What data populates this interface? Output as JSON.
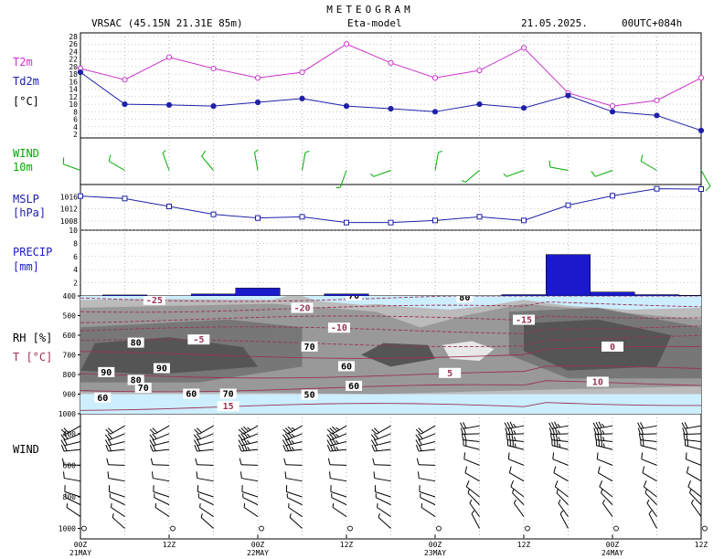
{
  "header": {
    "title": "METEOGRAM",
    "station": "VRSAC (45.15N 21.31E  85m)",
    "model": "Eta-model",
    "date": "21.05.2025.",
    "run": "00UTC+084h"
  },
  "colors": {
    "t2m": "#cc33cc",
    "td2m": "#2020aa",
    "wind": "#00aa00",
    "mslp": "#2020aa",
    "precip": "#1a1acc",
    "temp_contour": "#993355",
    "rh_90": "#555555",
    "rh_80": "#777777",
    "rh_70": "#999999",
    "rh_60": "#bbbbbb",
    "rh_dry": "#cceeff"
  },
  "panels": {
    "temp": {
      "label1": "T2m",
      "label2": "Td2m",
      "label3": "[°C]",
      "ticks": [
        "2",
        "4",
        "6",
        "8",
        "10",
        "12",
        "14",
        "16",
        "18",
        "20",
        "22",
        "24",
        "26",
        "28"
      ]
    },
    "wind10": {
      "label1": "WIND",
      "label2": "10m"
    },
    "mslp": {
      "label1": "MSLP",
      "label2": "[hPa]",
      "ticks": [
        "1008",
        "1012",
        "1016"
      ]
    },
    "precip": {
      "label1": "PRECIP",
      "label2": "[mm]",
      "ticks": [
        "2",
        "4",
        "6",
        "8",
        "10"
      ]
    },
    "profile": {
      "label1": "RH [%]",
      "label2": "T [°C]",
      "ticks": [
        "400",
        "500",
        "600",
        "700",
        "800",
        "900",
        "1000"
      ]
    },
    "windprof": {
      "label1": "WIND",
      "ticks": [
        "400",
        "600",
        "800",
        "1000"
      ]
    }
  },
  "time_axis": {
    "ticks": [
      "00Z",
      "12Z",
      "00Z",
      "12Z",
      "00Z",
      "12Z",
      "00Z",
      "12Z"
    ],
    "days": [
      "21MAY",
      "22MAY",
      "23MAY",
      "24MAY"
    ]
  },
  "chart_data": [
    {
      "type": "line",
      "x_hours": [
        0,
        6,
        12,
        18,
        24,
        30,
        36,
        42,
        48,
        54,
        60,
        66,
        72,
        78,
        84
      ],
      "series": [
        {
          "name": "T2m",
          "values": [
            19.5,
            16.5,
            22.5,
            19.5,
            17,
            18.5,
            26,
            21,
            17,
            19,
            25,
            13,
            9.5,
            11,
            17
          ]
        },
        {
          "name": "Td2m",
          "values": [
            18.5,
            10,
            9.8,
            9.5,
            10.5,
            11.5,
            9.5,
            8.8,
            8,
            10,
            9,
            12.3,
            8,
            7,
            3
          ]
        }
      ],
      "ylim": [
        2,
        28
      ]
    },
    {
      "type": "line",
      "x_hours": [
        0,
        6,
        12,
        18,
        24,
        30,
        36,
        42,
        48,
        54,
        60,
        66,
        72,
        78,
        84
      ],
      "series": [
        {
          "name": "MSLP",
          "values": [
            1016.2,
            1015.4,
            1012.8,
            1010.2,
            1009,
            1009.4,
            1007.5,
            1007.5,
            1008.2,
            1009.4,
            1008.2,
            1013.2,
            1016.3,
            1018.6,
            1018.5
          ]
        }
      ],
      "ylim": [
        1005,
        1020
      ]
    },
    {
      "type": "bar",
      "bars": [
        {
          "from": 3,
          "to": 9,
          "value": 0.15
        },
        {
          "from": 15,
          "to": 21,
          "value": 0.3
        },
        {
          "from": 21,
          "to": 27,
          "value": 1.2
        },
        {
          "from": 33,
          "to": 39,
          "value": 0.3
        },
        {
          "from": 57,
          "to": 63,
          "value": 0.2
        },
        {
          "from": 63,
          "to": 69,
          "value": 6.3
        },
        {
          "from": 69,
          "to": 75,
          "value": 0.6
        },
        {
          "from": 75,
          "to": 81,
          "value": 0.2
        },
        {
          "from": 81,
          "to": 84,
          "value": 0.1
        }
      ],
      "ylim": [
        0,
        10
      ]
    },
    {
      "type": "heatmap",
      "pressure_levels": [
        400,
        500,
        600,
        700,
        800,
        900,
        1000
      ],
      "temp_isotherms": [
        {
          "label": "-25",
          "level": 410
        },
        {
          "label": "-20",
          "level": 465
        },
        {
          "label": "-15",
          "level": 520
        },
        {
          "label": "-10",
          "level": 575
        },
        {
          "label": "-5",
          "level": 640
        },
        {
          "label": "0",
          "level": 700
        },
        {
          "label": "5",
          "level": 800
        },
        {
          "label": "10",
          "level": 870
        },
        {
          "label": "15",
          "level": 965
        }
      ],
      "rh_labels": [
        {
          "label": "80",
          "hour": 7.5,
          "level": 640
        },
        {
          "label": "90",
          "hour": 3.5,
          "level": 790
        },
        {
          "label": "90",
          "hour": 11,
          "level": 770
        },
        {
          "label": "80",
          "hour": 7.5,
          "level": 830
        },
        {
          "label": "70",
          "hour": 8.5,
          "level": 870
        },
        {
          "label": "60",
          "hour": 3,
          "level": 920
        },
        {
          "label": "60",
          "hour": 15,
          "level": 900
        },
        {
          "label": "70",
          "hour": 20,
          "level": 900
        },
        {
          "label": "70",
          "hour": 31,
          "level": 660
        },
        {
          "label": "60",
          "hour": 37,
          "level": 860
        },
        {
          "label": "50",
          "hour": 31,
          "level": 905
        },
        {
          "label": "60",
          "hour": 36,
          "level": 760
        },
        {
          "label": "70",
          "hour": 37,
          "level": 400
        },
        {
          "label": "80",
          "hour": 52,
          "level": 410
        }
      ]
    },
    {
      "type": "scatter",
      "name": "wind10m",
      "x_hours": [
        0,
        6,
        12,
        18,
        24,
        30,
        36,
        42,
        48,
        54,
        60,
        66,
        72,
        78,
        84
      ],
      "direction_deg": [
        290,
        300,
        340,
        320,
        350,
        10,
        200,
        250,
        10,
        230,
        250,
        280,
        250,
        300,
        150
      ],
      "speed_kt": [
        10,
        10,
        5,
        10,
        5,
        5,
        5,
        5,
        5,
        5,
        5,
        10,
        10,
        10,
        10
      ]
    }
  ]
}
